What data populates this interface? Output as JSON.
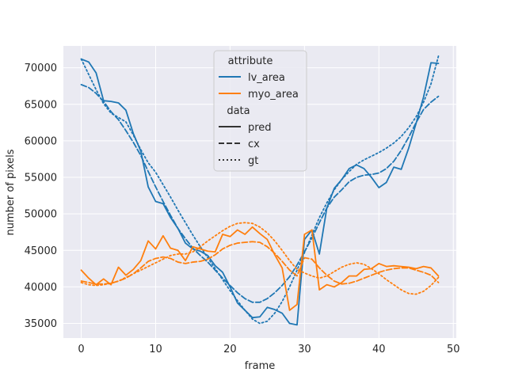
{
  "chart_data": {
    "type": "line",
    "title": "",
    "xlabel": "frame",
    "ylabel": "number of pixels",
    "xlim": [
      -2.4,
      50.4
    ],
    "ylim": [
      33000,
      73000
    ],
    "xticks": [
      0,
      10,
      20,
      30,
      40,
      50
    ],
    "yticks": [
      35000,
      40000,
      45000,
      50000,
      55000,
      60000,
      65000,
      70000
    ],
    "xtick_labels": [
      "0",
      "10",
      "20",
      "30",
      "40",
      "50"
    ],
    "ytick_labels": [
      "35000",
      "40000",
      "45000",
      "50000",
      "55000",
      "60000",
      "65000",
      "70000"
    ],
    "grid": true,
    "legend": {
      "placement": "top-center",
      "hue_title": "attribute",
      "style_title": "data",
      "hue_entries": [
        {
          "label": "lv_area",
          "color": "#1f77b4"
        },
        {
          "label": "myo_area",
          "color": "#ff7f0e"
        }
      ],
      "style_entries": [
        {
          "label": "pred",
          "dash": "solid"
        },
        {
          "label": "cx",
          "dash": "dashed"
        },
        {
          "label": "gt",
          "dash": "dotted"
        }
      ]
    },
    "x": [
      0,
      1,
      2,
      3,
      4,
      5,
      6,
      7,
      8,
      9,
      10,
      11,
      12,
      13,
      14,
      15,
      16,
      17,
      18,
      19,
      20,
      21,
      22,
      23,
      24,
      25,
      26,
      27,
      28,
      29,
      30,
      31,
      32,
      33,
      34,
      35,
      36,
      37,
      38,
      39,
      40,
      41,
      42,
      43,
      44,
      45,
      46,
      47,
      48
    ],
    "series": [
      {
        "attribute": "lv_area",
        "data": "pred",
        "color": "#1f77b4",
        "dash": "solid",
        "values": [
          71200,
          70800,
          69300,
          65500,
          65400,
          65200,
          64200,
          61000,
          58600,
          53700,
          51700,
          51400,
          49500,
          48000,
          46000,
          45200,
          44900,
          44300,
          42900,
          42000,
          40000,
          37800,
          36800,
          35800,
          35900,
          37200,
          36900,
          36400,
          35000,
          34800,
          46500,
          47800,
          44500,
          50800,
          53500,
          54700,
          56200,
          56700,
          56200,
          55000,
          53600,
          54300,
          56400,
          56100,
          59000,
          62400,
          66000,
          70700,
          70600
        ]
      },
      {
        "attribute": "lv_area",
        "data": "cx",
        "color": "#1f77b4",
        "dash": "dashed",
        "values": [
          67700,
          67300,
          66500,
          65400,
          64000,
          62900,
          61400,
          59800,
          58000,
          55800,
          53700,
          51700,
          49800,
          48000,
          46600,
          45300,
          44300,
          43400,
          42300,
          41200,
          40200,
          39200,
          38400,
          37900,
          37900,
          38400,
          39200,
          40200,
          41400,
          43000,
          44800,
          46700,
          48800,
          50800,
          52300,
          53300,
          54400,
          55000,
          55300,
          55400,
          55600,
          56200,
          57200,
          58700,
          60500,
          62500,
          64300,
          65300,
          66100
        ]
      },
      {
        "attribute": "lv_area",
        "data": "gt",
        "color": "#1f77b4",
        "dash": "dotted",
        "values": [
          71200,
          69100,
          67000,
          65100,
          63800,
          63200,
          62600,
          60800,
          58800,
          57000,
          55700,
          54000,
          52300,
          50500,
          48800,
          47100,
          45500,
          44000,
          42500,
          41000,
          39500,
          38100,
          36800,
          35600,
          35000,
          35300,
          36400,
          38000,
          40000,
          42300,
          44700,
          47100,
          49500,
          51500,
          53300,
          54700,
          55800,
          56800,
          57400,
          57900,
          58400,
          59000,
          59700,
          60600,
          61800,
          63300,
          65300,
          67800,
          71600
        ]
      },
      {
        "attribute": "myo_area",
        "data": "pred",
        "color": "#ff7f0e",
        "dash": "solid",
        "values": [
          42300,
          41200,
          40300,
          41100,
          40300,
          42700,
          41600,
          42400,
          43600,
          46300,
          45200,
          47000,
          45300,
          45000,
          43600,
          45500,
          45200,
          44900,
          44800,
          47200,
          46900,
          47800,
          47200,
          48200,
          47300,
          46500,
          44400,
          42600,
          36800,
          37600,
          47200,
          47800,
          39600,
          40300,
          40000,
          40600,
          41500,
          41500,
          42400,
          42500,
          43200,
          42800,
          42900,
          42800,
          42700,
          42500,
          42800,
          42600,
          41500
        ]
      },
      {
        "attribute": "myo_area",
        "data": "cx",
        "color": "#ff7f0e",
        "dash": "dashed",
        "values": [
          40800,
          40600,
          40400,
          40400,
          40500,
          40800,
          41200,
          41800,
          42600,
          43500,
          43900,
          44100,
          43900,
          43400,
          43200,
          43400,
          43500,
          43800,
          44400,
          45200,
          45700,
          46000,
          46100,
          46200,
          46100,
          45500,
          44600,
          43500,
          42300,
          41500,
          44000,
          43800,
          42600,
          41600,
          40800,
          40400,
          40500,
          40800,
          41200,
          41600,
          42000,
          42300,
          42500,
          42600,
          42600,
          42300,
          42000,
          41600,
          40600
        ]
      },
      {
        "attribute": "myo_area",
        "data": "gt",
        "color": "#ff7f0e",
        "dash": "dotted",
        "values": [
          40600,
          40300,
          40200,
          40300,
          40500,
          40800,
          41300,
          41800,
          42300,
          42800,
          43300,
          43800,
          44300,
          44500,
          44500,
          44800,
          45500,
          46300,
          47000,
          47700,
          48300,
          48700,
          48800,
          48700,
          48200,
          47400,
          46300,
          45000,
          43600,
          42400,
          41900,
          41500,
          41200,
          41500,
          42100,
          42700,
          43100,
          43300,
          43100,
          42500,
          41800,
          41000,
          40300,
          39600,
          39100,
          39000,
          39400,
          40200,
          41300
        ]
      }
    ]
  }
}
